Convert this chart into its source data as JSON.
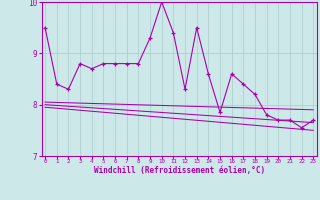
{
  "xlabel": "Windchill (Refroidissement éolien,°C)",
  "x": [
    0,
    1,
    2,
    3,
    4,
    5,
    6,
    7,
    8,
    9,
    10,
    11,
    12,
    13,
    14,
    15,
    16,
    17,
    18,
    19,
    20,
    21,
    22,
    23
  ],
  "line1": [
    9.5,
    8.4,
    8.3,
    8.8,
    8.7,
    8.8,
    8.8,
    8.8,
    8.8,
    9.3,
    10.0,
    9.4,
    8.3,
    9.5,
    8.6,
    7.85,
    8.6,
    8.4,
    8.2,
    7.8,
    7.7,
    7.7,
    7.55,
    7.7
  ],
  "line2": [
    [
      0,
      8.05
    ],
    [
      23,
      7.9
    ]
  ],
  "line3": [
    [
      0,
      8.0
    ],
    [
      23,
      7.65
    ]
  ],
  "line4": [
    [
      0,
      7.95
    ],
    [
      23,
      7.5
    ]
  ],
  "ylim": [
    7.0,
    10.0
  ],
  "xlim": [
    -0.3,
    23.3
  ],
  "yticks": [
    7,
    8,
    9,
    10
  ],
  "bg_color": "#cce8e8",
  "line_color": "#aa00aa",
  "grid_color": "#aacccc",
  "marker": "+"
}
